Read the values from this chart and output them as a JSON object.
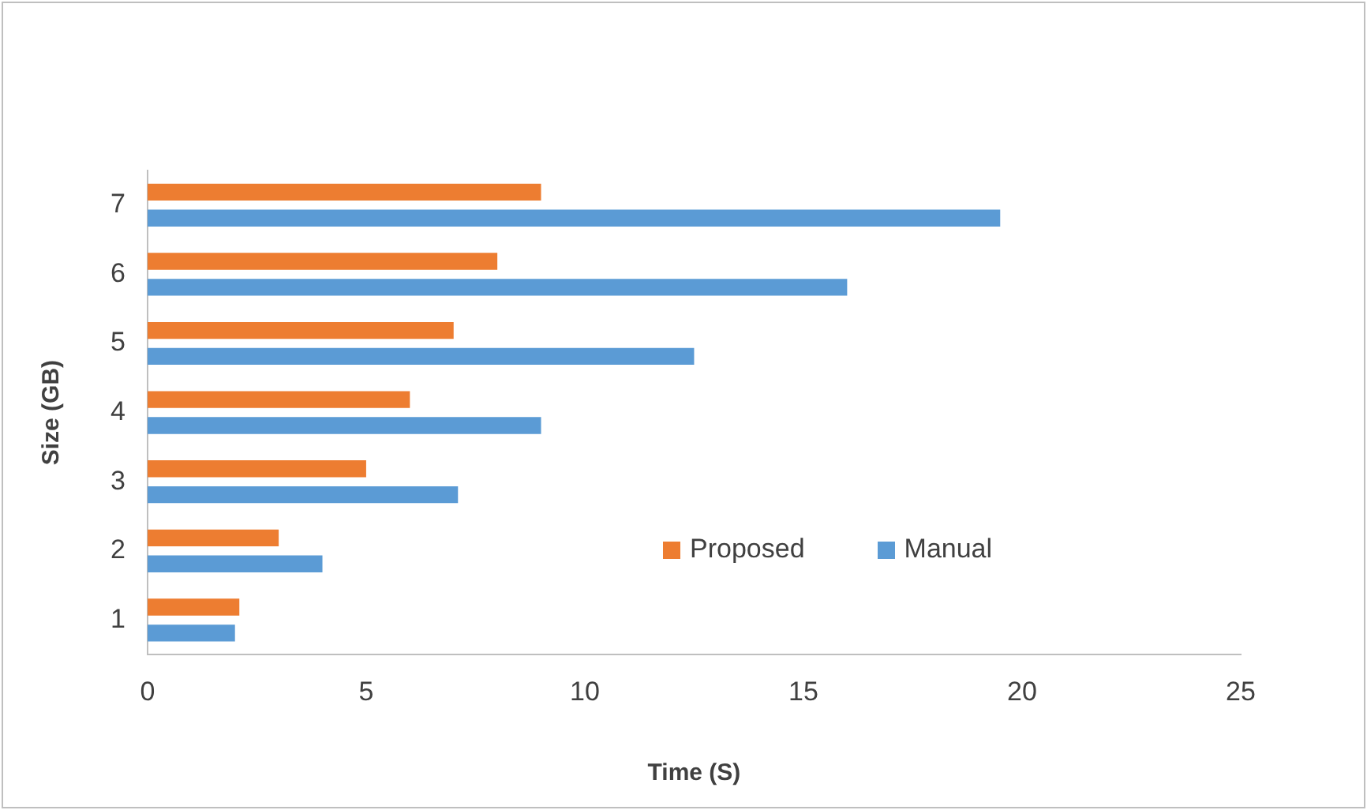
{
  "chart_data": {
    "type": "bar",
    "orientation": "horizontal",
    "xlabel": "Time (S)",
    "ylabel": "Size (GB)",
    "categories": [
      "7",
      "6",
      "5",
      "4",
      "3",
      "2",
      "1"
    ],
    "series": [
      {
        "name": "Proposed",
        "color": "#ed7d31",
        "values": [
          9,
          8,
          7,
          6,
          5,
          3,
          2.1
        ]
      },
      {
        "name": "Manual",
        "color": "#5b9bd5",
        "values": [
          19.5,
          16,
          12.5,
          9,
          7.1,
          4,
          2
        ]
      }
    ],
    "xlim": [
      0,
      25
    ],
    "xticks": [
      0,
      5,
      10,
      15,
      20,
      25
    ],
    "grid": false,
    "legend": "right"
  }
}
